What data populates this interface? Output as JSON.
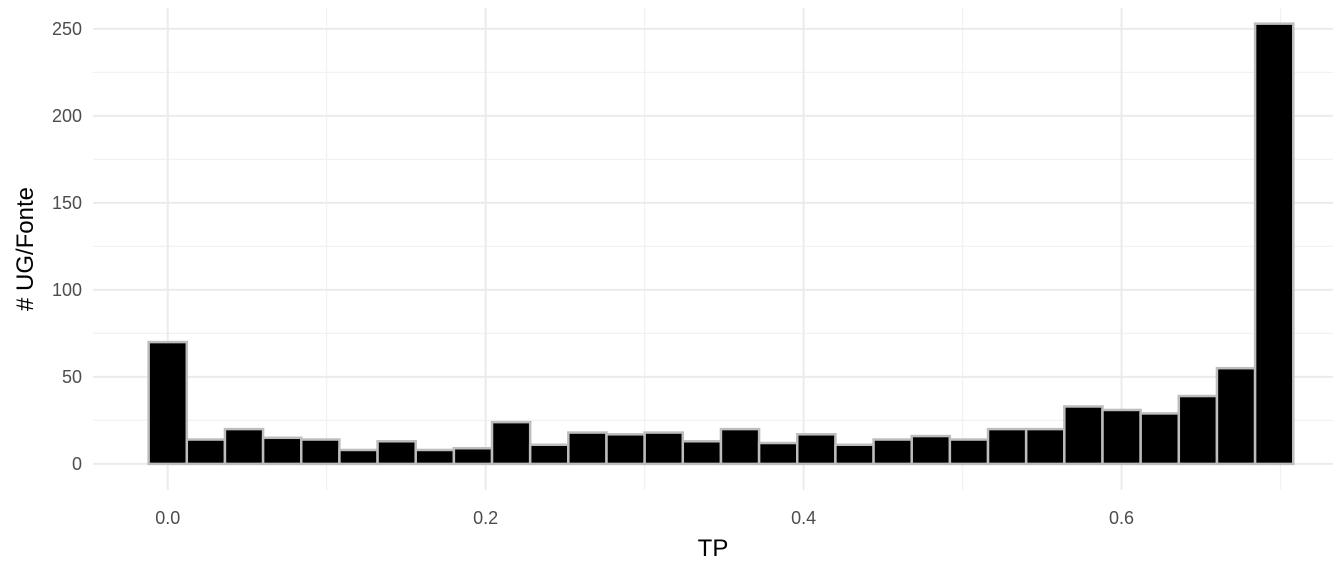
{
  "chart_data": {
    "type": "bar",
    "xlabel": "TP",
    "ylabel": "# UG/Fonte",
    "bin_width": 0.024,
    "bin_centers": [
      0.0,
      0.024,
      0.048,
      0.072,
      0.096,
      0.12,
      0.144,
      0.168,
      0.192,
      0.216,
      0.24,
      0.264,
      0.288,
      0.312,
      0.336,
      0.36,
      0.384,
      0.408,
      0.432,
      0.456,
      0.48,
      0.504,
      0.528,
      0.552,
      0.576,
      0.6,
      0.624,
      0.648,
      0.672,
      0.696
    ],
    "values": [
      70,
      14,
      20,
      15,
      14,
      8,
      13,
      8,
      9,
      24,
      11,
      18,
      17,
      18,
      13,
      20,
      12,
      17,
      11,
      14,
      16,
      14,
      20,
      20,
      33,
      31,
      29,
      39,
      55,
      253
    ],
    "xlim": [
      -0.047,
      0.733
    ],
    "ylim": [
      -15,
      262
    ],
    "x_ticks": [
      0.0,
      0.2,
      0.4,
      0.6
    ],
    "x_tick_labels": [
      "0.0",
      "0.2",
      "0.4",
      "0.6"
    ],
    "y_ticks": [
      0,
      50,
      100,
      150,
      200,
      250
    ],
    "y_tick_labels": [
      "0",
      "50",
      "100",
      "150",
      "200",
      "250"
    ],
    "grid": true,
    "legend": "none",
    "bar_fill": "#000000",
    "bar_outline": "#bdbdbd"
  }
}
